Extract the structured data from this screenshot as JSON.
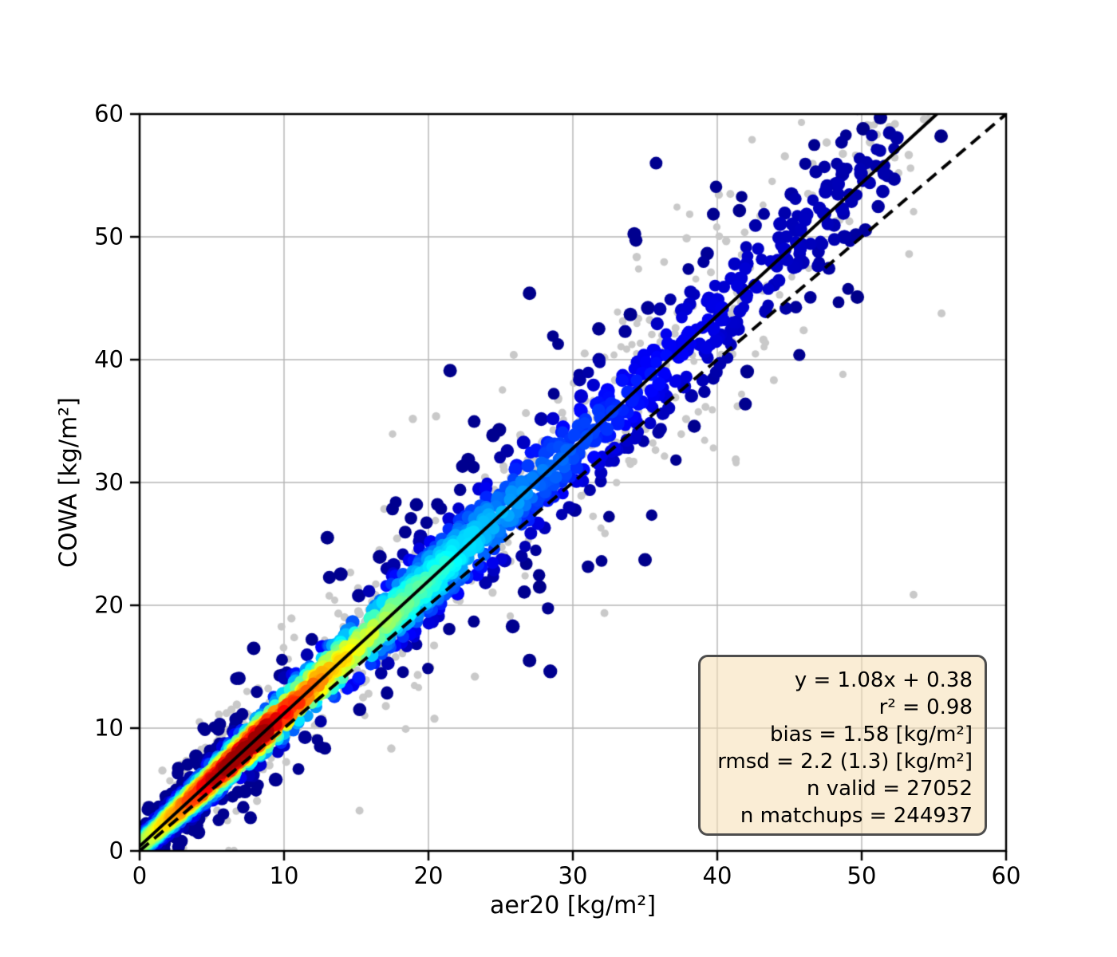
{
  "figure": {
    "background": "#ffffff"
  },
  "axes": {
    "x": {
      "label": "aer20 [kg/m²]",
      "ticks": [
        0,
        10,
        20,
        30,
        40,
        50,
        60
      ],
      "range": [
        0,
        60
      ]
    },
    "y": {
      "label": "COWA [kg/m²]",
      "ticks": [
        0,
        10,
        20,
        30,
        40,
        50,
        60
      ],
      "range": [
        0,
        60
      ]
    },
    "grid_color": "#b4b4b4",
    "spine_color": "#000000",
    "tick_color": "#000000"
  },
  "stats_box": {
    "lines": [
      "y = 1.08x + 0.38",
      "r² = 0.98",
      "bias = 1.58 [kg/m²]",
      "rmsd = 2.2 (1.3) [kg/m²]",
      "n valid = 27052",
      "n matchups = 244937"
    ],
    "fill_rgba": "rgba(245,222,179,0.55)",
    "border_color": "#4d4d4d"
  },
  "chart_data": {
    "type": "scatter",
    "title": "",
    "xlabel": "aer20 [kg/m²]",
    "ylabel": "COWA [kg/m²]",
    "xlim": [
      0,
      60
    ],
    "ylim": [
      0,
      60
    ],
    "grid": true,
    "legend_position": "none",
    "fit_line": {
      "slope": 1.08,
      "intercept": 0.38,
      "style": "solid",
      "color": "#000000",
      "width": 4
    },
    "identity_line": {
      "slope": 1.0,
      "intercept": 0.0,
      "style": "dashed",
      "color": "#000000",
      "width": 4,
      "dash": [
        15,
        9
      ]
    },
    "stats": {
      "equation": "y = 1.08x + 0.38",
      "r2": 0.98,
      "bias_kg_m2": 1.58,
      "rmsd_kg_m2": 2.2,
      "rmsd_secondary_kg_m2": 1.3,
      "n_valid": 27052,
      "n_matchups": 244937
    },
    "density_colormap": "jet",
    "background_points_color": "#c9c9c9",
    "cloud": {
      "seed": 42,
      "gray_seed": 7,
      "n_valid_rendered": 2600,
      "n_matchups_rendered": 1050,
      "density_peak_x": 8,
      "sigma_valid": "0.35 + 0.058*x",
      "sigma_matchups": "0.7 + 0.085*x",
      "note": "valid matchups colored by point density (jet: navy=low, red=high) along y=1.08x+0.38; all-matchup background points in light gray"
    },
    "outliers_valid": [
      [
        27.0,
        45.4
      ],
      [
        21.5,
        39.1
      ],
      [
        27.0,
        15.5
      ],
      [
        55.5,
        58.2
      ],
      [
        35.0,
        23.7
      ],
      [
        27.7,
        21.5
      ],
      [
        13.0,
        25.5
      ],
      [
        7.9,
        16.5
      ],
      [
        51.3,
        59.7
      ],
      [
        50.1,
        58.8
      ],
      [
        49.7,
        45.1
      ]
    ]
  }
}
